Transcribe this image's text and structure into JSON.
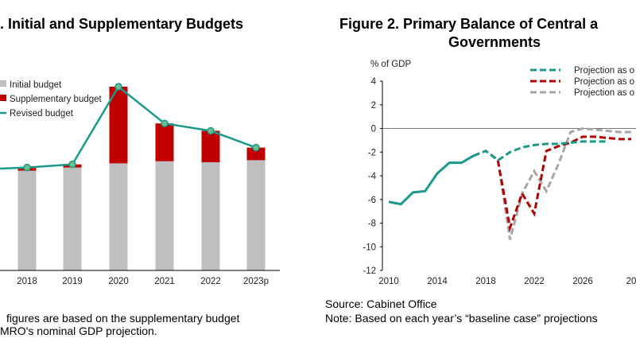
{
  "left_title": ". Initial and Supplementary Budgets",
  "right_title_line1": "Figure 2. Primary Balance of Central a",
  "right_title_line2": "Governments",
  "left_note_line1": "figures are based on the supplementary budget",
  "left_note_line2": "MRO's nominal GDP projection.",
  "right_source": "Source: Cabinet Office",
  "right_note": "Note: Based on each year’s “baseline case” projections",
  "colors": {
    "initial": "#bfbfbf",
    "supplementary": "#c00000",
    "revised": "#1a9a8a",
    "proj_red": "#b00000",
    "proj_gray": "#a6a6a6"
  },
  "chart_data": [
    {
      "type": "bar",
      "stacked": true,
      "categories": [
        "2018",
        "2019",
        "2020",
        "2021",
        "2022",
        "2023p"
      ],
      "series": [
        {
          "name": "Initial budget",
          "values": [
            95,
            98,
            102,
            104,
            103,
            105
          ]
        },
        {
          "name": "Supplementary budget",
          "values": [
            3,
            3,
            73,
            36,
            30,
            12
          ]
        },
        {
          "name": "Revised budget",
          "type": "line",
          "values": [
            98,
            101,
            175,
            140,
            133,
            117
          ]
        }
      ],
      "legend": "top-left",
      "grid": false
    },
    {
      "type": "line",
      "ylabel": "% of GDP",
      "ylim": [
        -12,
        4
      ],
      "yticks": [
        "4",
        "2",
        "0",
        "-2",
        "-4",
        "-6",
        "-8",
        "-10",
        "-12"
      ],
      "xticks": [
        "2010",
        "2014",
        "2018",
        "2022",
        "2026",
        "20"
      ],
      "legend": "top-right",
      "grid": false,
      "series": [
        {
          "x": [
            2010,
            2011,
            2012,
            2013,
            2014,
            2015,
            2016,
            2017
          ],
          "y": [
            -6.2,
            -6.4,
            -5.4,
            -5.3,
            -3.8,
            -2.9,
            -2.9,
            -2.3
          ],
          "style": "solid",
          "color": "#1a9a8a"
        },
        {
          "name": "Projection as o",
          "x": [
            2017,
            2018,
            2019,
            2020,
            2021,
            2022,
            2023,
            2024,
            2025,
            2026,
            2027,
            2028
          ],
          "y": [
            -2.3,
            -1.9,
            -2.7,
            -2.0,
            -1.6,
            -1.4,
            -1.3,
            -1.3,
            -1.2,
            -1.1,
            -1.1,
            -1.1
          ],
          "style": "dashed",
          "color": "#1a9a8a"
        },
        {
          "name": "Projection as o",
          "x": [
            2019,
            2020,
            2021,
            2022,
            2023,
            2024,
            2025,
            2026,
            2027,
            2028,
            2029,
            2030
          ],
          "y": [
            -2.7,
            -8.4,
            -5.5,
            -7.2,
            -1.9,
            -1.5,
            -1.2,
            -0.7,
            -0.7,
            -0.8,
            -0.9,
            -0.9
          ],
          "style": "dashed",
          "color": "#b00000"
        },
        {
          "name": "Projection as o",
          "x": [
            2017,
            2018,
            2019,
            2020,
            2021,
            2022,
            2023,
            2024,
            2025,
            2026,
            2027,
            2028,
            2029,
            2030
          ],
          "y": [
            -2.3,
            -1.9,
            -2.6,
            -9.4,
            -5.5,
            -3.6,
            -5.3,
            -3.0,
            -0.3,
            0,
            -0.1,
            -0.2,
            -0.3,
            -0.3
          ],
          "style": "dashed",
          "color": "#a6a6a6"
        }
      ]
    }
  ]
}
